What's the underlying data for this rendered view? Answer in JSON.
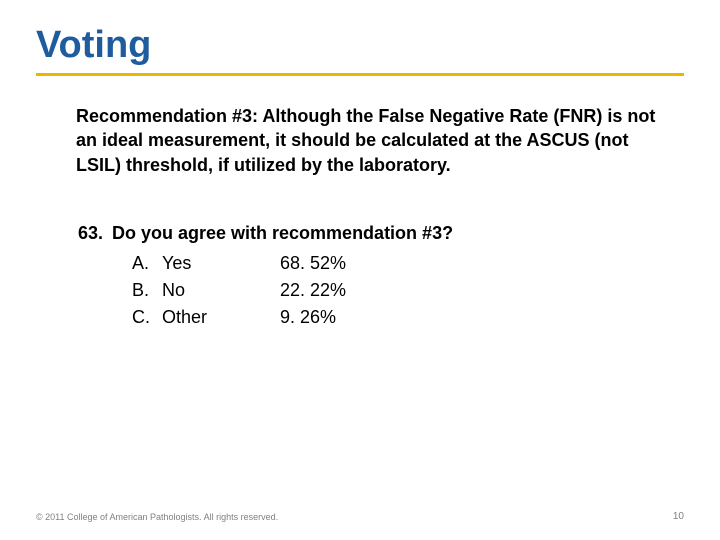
{
  "title": "Voting",
  "title_color": "#1f5c9e",
  "rule_color": "#e6b800",
  "recommendation": "Recommendation #3: Although the False Negative Rate (FNR) is not an ideal measurement, it should be calculated at the ASCUS (not LSIL) threshold, if utilized by the laboratory.",
  "question": {
    "number": "63.",
    "text": "Do you agree with recommendation #3?",
    "options": [
      {
        "letter": "A.",
        "label": "Yes",
        "value": "68. 52%"
      },
      {
        "letter": "B.",
        "label": "No",
        "value": "22. 22%"
      },
      {
        "letter": "C.",
        "label": "Other",
        "value": "9. 26%"
      }
    ]
  },
  "footer_text": "© 2011 College of American Pathologists. All rights reserved.",
  "page_number": "10",
  "text_color": "#000000",
  "footer_color": "#808080",
  "background_color": "#ffffff"
}
